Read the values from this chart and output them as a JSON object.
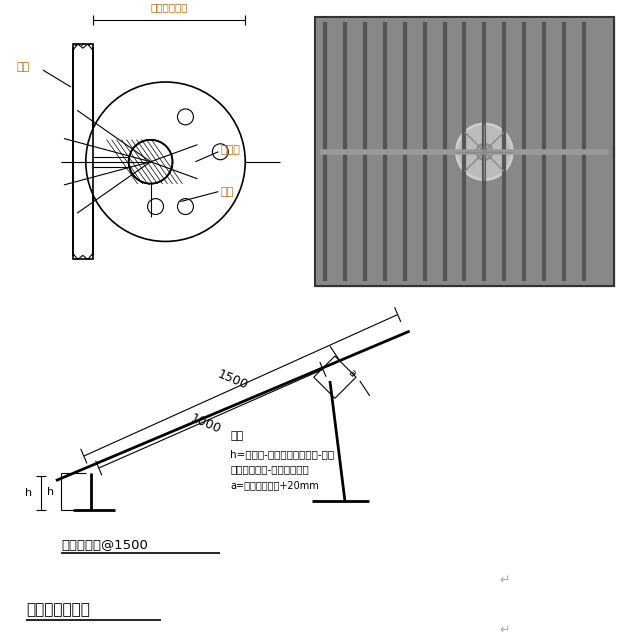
{
  "bg_color": "#ffffff",
  "line_color": "#000000",
  "dim_line_color": "#000000",
  "text_color": "#000000",
  "orange_color": "#cc6600",
  "fig_width": 6.24,
  "fig_height": 6.42,
  "title_bottom": "塑料垫块示意图",
  "label_text1": "主筋",
  "label_text2": "塑料卡",
  "label_text3": "横筋",
  "label_text4": "砂保护层厚度",
  "note_title": "注：",
  "note_line1": "h=顶板厚-下网下鐵钉筋直径-上网",
  "note_line2": "双向钉筋直径-上下鐵保护层",
  "note_line3": "a=顶板钉筋间距+20mm",
  "dim_label1": "1500",
  "dim_label2": "1000",
  "bottom_label": "楼板马尿鐵@1500",
  "h_label": "h"
}
